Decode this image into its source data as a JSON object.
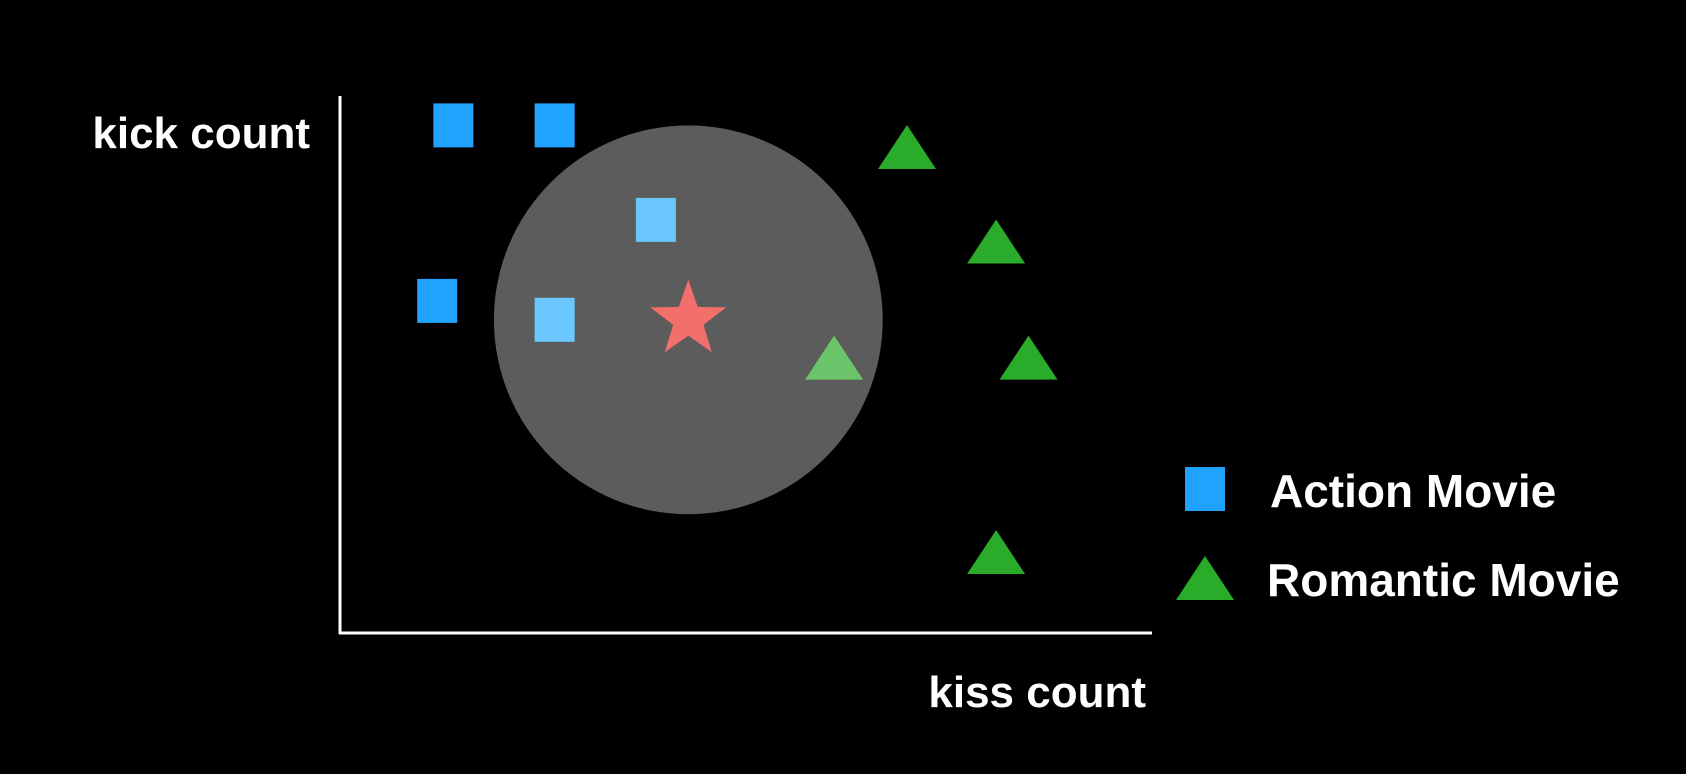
{
  "labels": {
    "y_axis": "kick count",
    "x_axis": "kiss count"
  },
  "legend": {
    "position": "bottom-right",
    "items": [
      {
        "label": "Action Movie",
        "shape": "square",
        "color": "#1fa3ff"
      },
      {
        "label": "Romantic Movie",
        "shape": "triangle",
        "color": "#2aab2a"
      }
    ]
  },
  "colors": {
    "background": "#000000",
    "axis": "#ffffff",
    "action": "#1fa3ff",
    "action_highlight": "#6bc7ff",
    "romantic": "#2aab2a",
    "romantic_highlight": "#6cc46a",
    "neighborhood": "#5c5c5c",
    "query": "#f26f6b"
  },
  "chart_data": {
    "type": "scatter",
    "xlim": [
      0,
      100
    ],
    "ylim": [
      0,
      100
    ],
    "series": [
      {
        "name": "Action Movie",
        "marker": "square",
        "points": [
          {
            "x": 14,
            "y": 94,
            "in_neighborhood": false
          },
          {
            "x": 26.5,
            "y": 94,
            "in_neighborhood": false
          },
          {
            "x": 39,
            "y": 76.5,
            "in_neighborhood": true
          },
          {
            "x": 12,
            "y": 61.5,
            "in_neighborhood": false
          },
          {
            "x": 26.5,
            "y": 58,
            "in_neighborhood": true
          }
        ]
      },
      {
        "name": "Romantic Movie",
        "marker": "triangle",
        "points": [
          {
            "x": 70,
            "y": 90,
            "in_neighborhood": false
          },
          {
            "x": 81,
            "y": 72.5,
            "in_neighborhood": false
          },
          {
            "x": 85,
            "y": 51,
            "in_neighborhood": false
          },
          {
            "x": 61,
            "y": 51,
            "in_neighborhood": true
          },
          {
            "x": 81,
            "y": 15,
            "in_neighborhood": false
          }
        ]
      }
    ],
    "query_point": {
      "marker": "star",
      "x": 43,
      "y": 58
    },
    "neighborhood": {
      "shape": "circle",
      "center_x": 43,
      "center_y": 58,
      "radius_x": 24,
      "radius_y": 36
    }
  }
}
